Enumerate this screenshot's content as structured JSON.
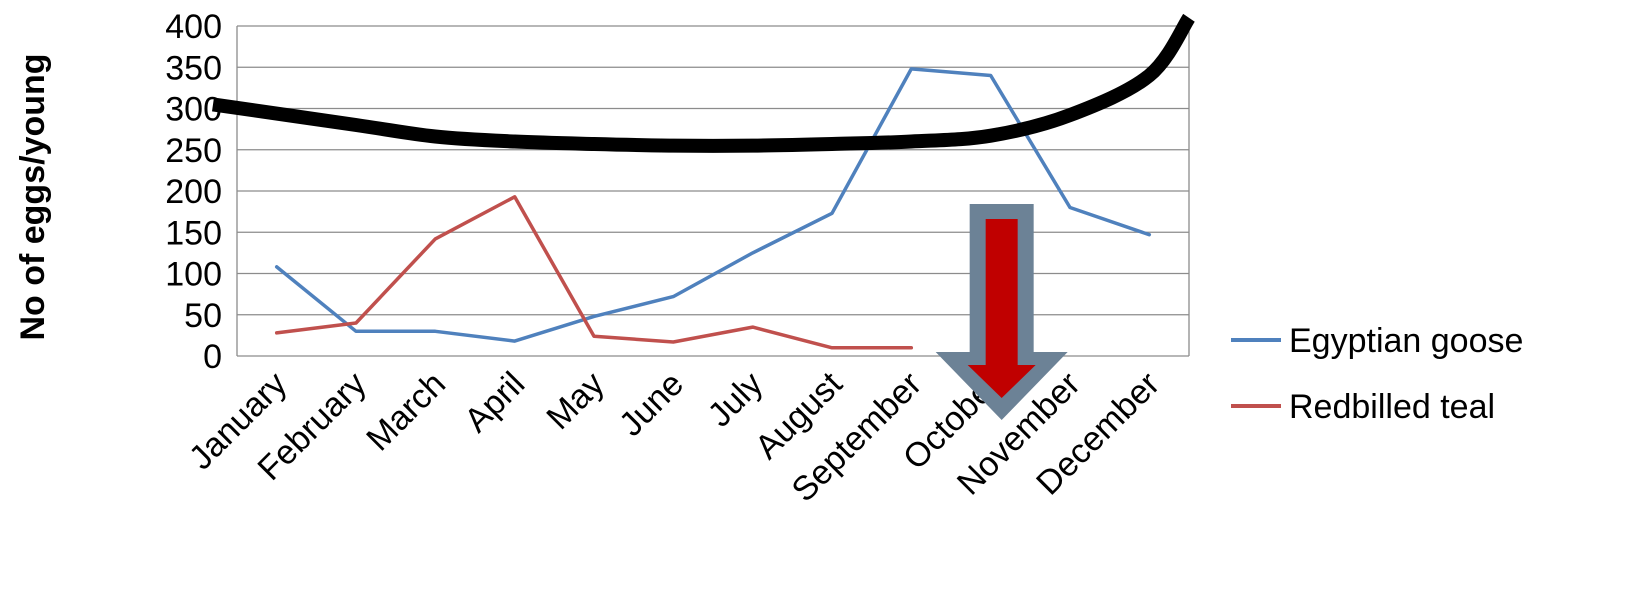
{
  "chart_data": {
    "type": "line",
    "title": "",
    "xlabel": "",
    "ylabel": "No of eggs/young",
    "ylim": [
      0,
      400
    ],
    "yticks": [
      0,
      50,
      100,
      150,
      200,
      250,
      300,
      350,
      400
    ],
    "grid": true,
    "legend_position": "right",
    "categories": [
      "January",
      "February",
      "March",
      "April",
      "May",
      "June",
      "July",
      "August",
      "September",
      "October",
      "November",
      "December"
    ],
    "series": [
      {
        "name": "Egyptian goose",
        "color": "#4f81bd",
        "values": [
          108,
          30,
          30,
          18,
          48,
          72,
          125,
          173,
          348,
          340,
          180,
          147
        ]
      },
      {
        "name": "Redbilled teal",
        "color": "#c0504d",
        "values": [
          28,
          40,
          142,
          193,
          24,
          17,
          35,
          10,
          10,
          null,
          null,
          null
        ]
      }
    ],
    "annotations": {
      "trend_curve": {
        "color": "#000000",
        "points": [
          [
            0.3,
            305
          ],
          [
            1,
            280
          ],
          [
            2,
            266
          ],
          [
            3,
            260
          ],
          [
            4,
            257
          ],
          [
            5,
            255
          ],
          [
            6,
            255
          ],
          [
            7,
            257
          ],
          [
            8,
            260
          ],
          [
            9,
            267
          ],
          [
            10,
            292
          ],
          [
            11,
            340
          ],
          [
            11.5,
            410
          ]
        ]
      },
      "down_arrow": {
        "outer_color": "#6c8296",
        "inner_color": "#c00000",
        "category": "October"
      }
    }
  }
}
